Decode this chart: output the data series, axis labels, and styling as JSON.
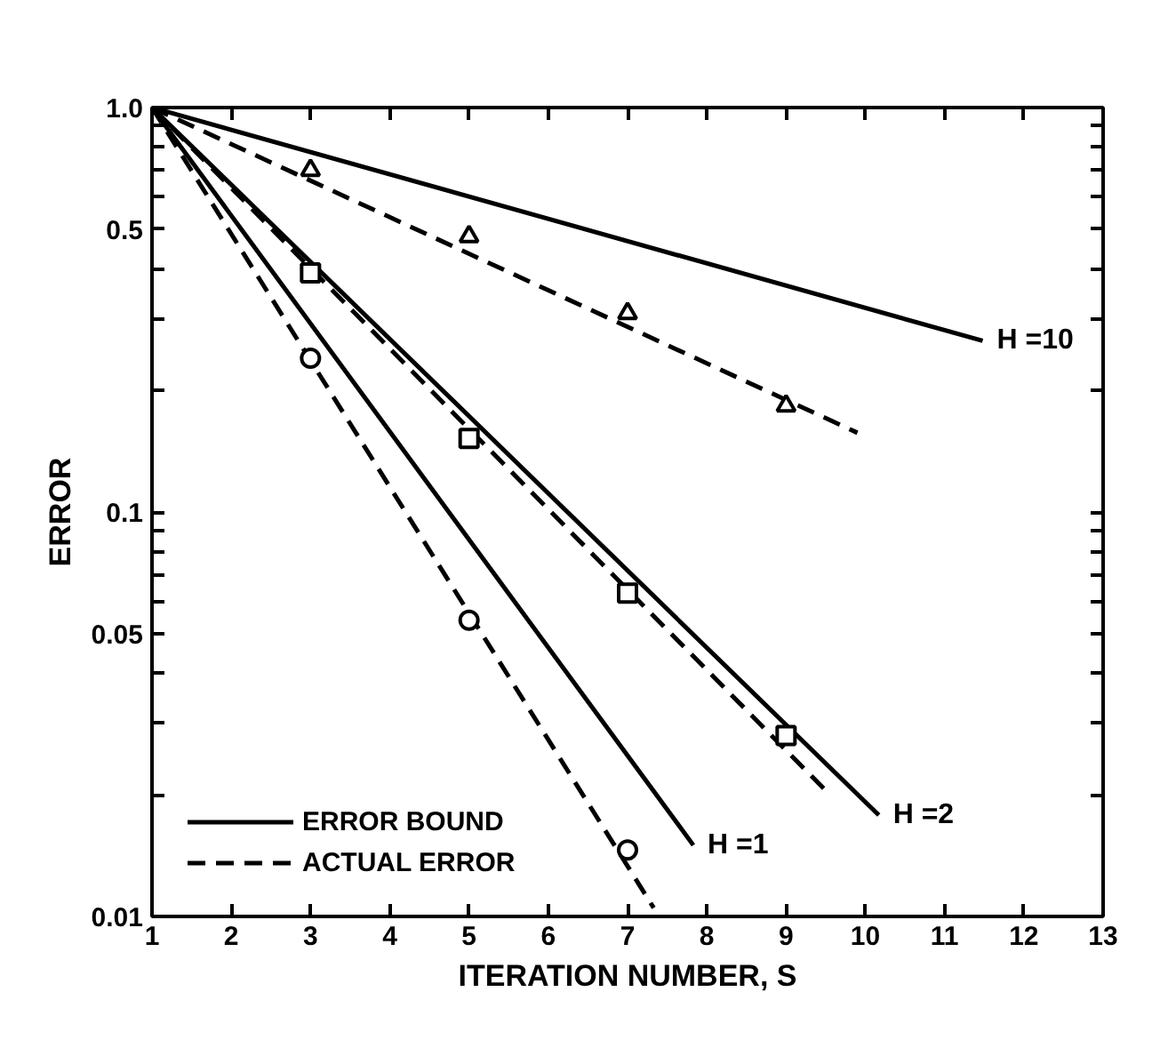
{
  "chart_data": {
    "type": "line",
    "xlabel": "ITERATION NUMBER, S",
    "ylabel": "ERROR",
    "log": "y",
    "grid": false,
    "legend": "bottom left",
    "xlim": [
      1,
      13
    ],
    "xticks": [
      1,
      2,
      3,
      4,
      5,
      6,
      7,
      8,
      9,
      10,
      11,
      12,
      13
    ],
    "ylim": [
      0.01,
      1
    ],
    "yticks": [
      0.01,
      {
        "value": 0.02,
        "label": null
      },
      {
        "value": 0.03,
        "label": null
      },
      {
        "value": 0.04,
        "label": null
      },
      0.05,
      {
        "value": 0.06,
        "label": null
      },
      {
        "value": 0.07,
        "label": null
      },
      {
        "value": 0.08,
        "label": null
      },
      {
        "value": 0.09,
        "label": null
      },
      0.1,
      {
        "value": 0.2,
        "label": null
      },
      {
        "value": 0.3,
        "label": null
      },
      {
        "value": 0.4,
        "label": null
      },
      0.5,
      {
        "value": 0.6,
        "label": null
      },
      {
        "value": 0.7,
        "label": null
      },
      {
        "value": 0.8,
        "label": null
      },
      {
        "value": 0.9,
        "label": null
      },
      {
        "value": 1,
        "label": "1.0"
      }
    ],
    "series": [
      {
        "name": "ERROR BOUND",
        "line_style": "solid",
        "color": "#000000",
        "x": [
          1,
          11.48
        ],
        "values": [
          1,
          0.265
        ]
      },
      {
        "line_style": "solid",
        "color": "#000000",
        "x": [
          1,
          10.17
        ],
        "values": [
          1,
          0.0178
        ]
      },
      {
        "line_style": "solid",
        "color": "#000000",
        "x": [
          1,
          7.83
        ],
        "values": [
          1,
          0.015
        ]
      },
      {
        "name": "ACTUAL ERROR",
        "line_style": "dashed",
        "color": "#000000",
        "x": [
          1,
          9.9
        ],
        "values": [
          1,
          0.157
        ]
      },
      {
        "line_style": "dashed",
        "color": "#000000",
        "x": [
          1,
          9.52
        ],
        "values": [
          1,
          0.0203
        ]
      },
      {
        "line_style": "dashed",
        "color": "#000000",
        "x": [
          1,
          7.33
        ],
        "values": [
          1,
          0.0105
        ]
      },
      {
        "type": "scatter",
        "marker": "triangle",
        "color": "#000000",
        "x": [
          3,
          5,
          7,
          9
        ],
        "values": [
          0.7,
          0.48,
          0.31,
          0.183
        ]
      },
      {
        "type": "scatter",
        "marker": "square",
        "color": "#000000",
        "x": [
          3,
          5,
          7,
          9
        ],
        "values": [
          0.39,
          0.152,
          0.063,
          0.028
        ]
      },
      {
        "type": "scatter",
        "marker": "circle",
        "color": "#000000",
        "x": [
          3,
          5,
          7
        ],
        "values": [
          0.24,
          0.054,
          0.0146
        ]
      }
    ],
    "annotations": [
      {
        "text": "H =10",
        "x": 11.48,
        "y": 0.265
      },
      {
        "text": "H =2",
        "x": 10.17,
        "y": 0.0178
      },
      {
        "text": "H =1",
        "x": 7.83,
        "y": 0.015
      }
    ]
  }
}
